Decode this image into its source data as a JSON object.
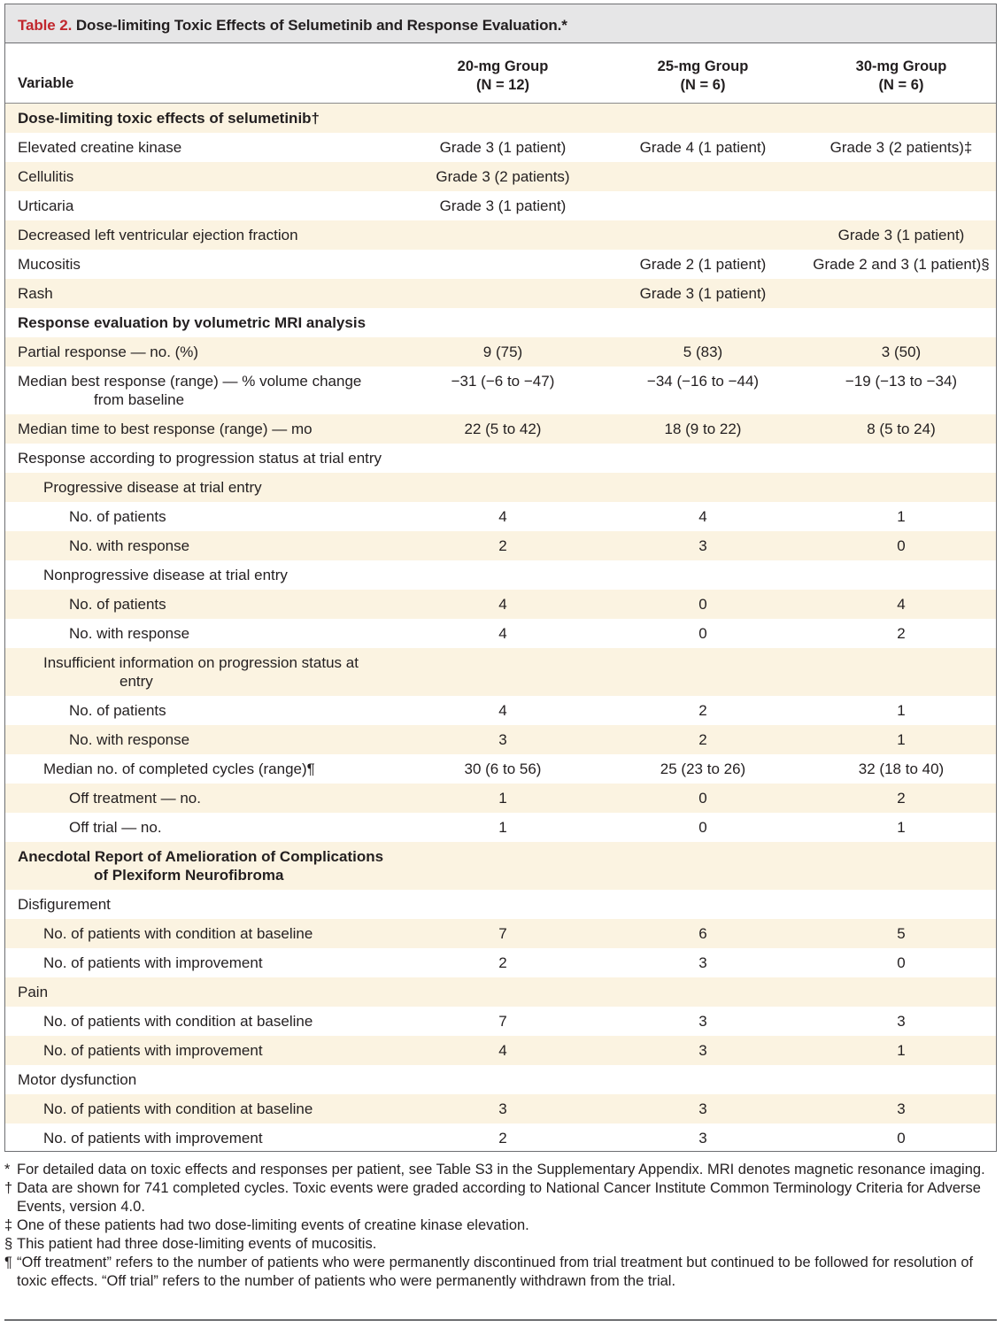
{
  "table": {
    "label": "Table 2.",
    "title": "Dose-limiting Toxic Effects of Selumetinib and Response Evaluation.*",
    "header": {
      "variable": "Variable",
      "groups": [
        {
          "name": "20-mg Group",
          "n": "(N = 12)"
        },
        {
          "name": "25-mg Group",
          "n": "(N = 6)"
        },
        {
          "name": "30-mg Group",
          "n": "(N = 6)"
        }
      ]
    },
    "rows": [
      {
        "label": "Dose-limiting toxic effects of selumetinib†",
        "section": true,
        "indent": 0,
        "values": [
          "",
          "",
          ""
        ]
      },
      {
        "label": "Elevated creatine kinase",
        "indent": 0,
        "values": [
          "Grade 3 (1 patient)",
          "Grade 4 (1 patient)",
          "Grade 3 (2 patients)‡"
        ]
      },
      {
        "label": "Cellulitis",
        "indent": 0,
        "values": [
          "Grade 3 (2 patients)",
          "",
          ""
        ]
      },
      {
        "label": "Urticaria",
        "indent": 0,
        "values": [
          "Grade 3 (1 patient)",
          "",
          ""
        ]
      },
      {
        "label": "Decreased left ventricular ejection fraction",
        "indent": 0,
        "values": [
          "",
          "",
          "Grade 3 (1 patient)"
        ]
      },
      {
        "label": "Mucositis",
        "indent": 0,
        "values": [
          "",
          "Grade 2 (1 patient)",
          "Grade 2 and 3 (1 patient)§"
        ]
      },
      {
        "label": "Rash",
        "indent": 0,
        "values": [
          "",
          "Grade 3 (1 patient)",
          ""
        ]
      },
      {
        "label": "Response evaluation by volumetric MRI analysis",
        "section": true,
        "indent": 0,
        "values": [
          "",
          "",
          ""
        ]
      },
      {
        "label": "Partial response — no. (%)",
        "indent": 0,
        "values": [
          "9 (75)",
          "5 (83)",
          "3 (50)"
        ]
      },
      {
        "label": "Median best response (range) — % volume change",
        "label2": "from baseline",
        "indent": 0,
        "values": [
          "−31 (−6 to −47)",
          "−34 (−16 to −44)",
          "−19 (−13 to −34)"
        ]
      },
      {
        "label": "Median time to best response (range) — mo",
        "indent": 0,
        "values": [
          "22 (5 to 42)",
          "18 (9 to 22)",
          "8 (5 to 24)"
        ]
      },
      {
        "label": "Response according to progression status at trial entry",
        "indent": 0,
        "values": [
          "",
          "",
          ""
        ]
      },
      {
        "label": "Progressive disease at trial entry",
        "indent": 1,
        "values": [
          "",
          "",
          ""
        ]
      },
      {
        "label": "No. of patients",
        "indent": 2,
        "values": [
          "4",
          "4",
          "1"
        ]
      },
      {
        "label": "No. with response",
        "indent": 2,
        "values": [
          "2",
          "3",
          "0"
        ]
      },
      {
        "label": "Nonprogressive disease at trial entry",
        "indent": 1,
        "values": [
          "",
          "",
          ""
        ]
      },
      {
        "label": "No. of patients",
        "indent": 2,
        "values": [
          "4",
          "0",
          "4"
        ]
      },
      {
        "label": "No. with response",
        "indent": 2,
        "values": [
          "4",
          "0",
          "2"
        ]
      },
      {
        "label": "Insufficient information on progression status at",
        "label2": "entry",
        "indent": 1,
        "values": [
          "",
          "",
          ""
        ]
      },
      {
        "label": "No. of patients",
        "indent": 2,
        "values": [
          "4",
          "2",
          "1"
        ]
      },
      {
        "label": "No. with response",
        "indent": 2,
        "values": [
          "3",
          "2",
          "1"
        ]
      },
      {
        "label": "Median no. of completed cycles (range)¶",
        "indent": 1,
        "values": [
          "30 (6 to 56)",
          "25 (23 to 26)",
          "32 (18 to 40)"
        ]
      },
      {
        "label": "Off treatment — no.",
        "indent": 2,
        "values": [
          "1",
          "0",
          "2"
        ]
      },
      {
        "label": "Off trial — no.",
        "indent": 2,
        "values": [
          "1",
          "0",
          "1"
        ]
      },
      {
        "label": "Anecdotal Report of Amelioration of Complications",
        "label2": "of Plexiform Neurofibroma",
        "section": true,
        "indent": 0,
        "values": [
          "",
          "",
          ""
        ]
      },
      {
        "label": "Disfigurement",
        "indent": 0,
        "values": [
          "",
          "",
          ""
        ]
      },
      {
        "label": "No. of patients with condition at baseline",
        "indent": 1,
        "values": [
          "7",
          "6",
          "5"
        ]
      },
      {
        "label": "No. of patients with improvement",
        "indent": 1,
        "values": [
          "2",
          "3",
          "0"
        ]
      },
      {
        "label": "Pain",
        "indent": 0,
        "values": [
          "",
          "",
          ""
        ]
      },
      {
        "label": "No. of patients with condition at baseline",
        "indent": 1,
        "values": [
          "7",
          "3",
          "3"
        ]
      },
      {
        "label": "No. of patients with improvement",
        "indent": 1,
        "values": [
          "4",
          "3",
          "1"
        ]
      },
      {
        "label": "Motor dysfunction",
        "indent": 0,
        "values": [
          "",
          "",
          ""
        ]
      },
      {
        "label": "No. of patients with condition at baseline",
        "indent": 1,
        "values": [
          "3",
          "3",
          "3"
        ]
      },
      {
        "label": "No. of patients with improvement",
        "indent": 1,
        "values": [
          "2",
          "3",
          "0"
        ]
      }
    ]
  },
  "footnotes": [
    {
      "symbol": "*",
      "text": "For detailed data on toxic effects and responses per patient, see Table S3 in the Supplementary Appendix. MRI denotes magnetic resonance imaging."
    },
    {
      "symbol": "†",
      "text": "Data are shown for 741 completed cycles. Toxic events were graded according to National Cancer Institute Common Terminology Criteria for Adverse Events, version 4.0."
    },
    {
      "symbol": "‡",
      "text": "One of these patients had two dose-limiting events of creatine kinase elevation."
    },
    {
      "symbol": "§",
      "text": "This patient had three dose-limiting events of mucositis."
    },
    {
      "symbol": "¶",
      "text": "“Off treatment” refers to the number of patients who were permanently discontinued from trial treatment but continued to be followed for resolution of toxic effects. “Off trial” refers to the number of patients who were permanently withdrawn from the trial."
    }
  ],
  "colors": {
    "label": "#c1272d",
    "title_bar": "#e6e6e7",
    "shade": "#fbf3e1",
    "border": "#6d6e71"
  }
}
